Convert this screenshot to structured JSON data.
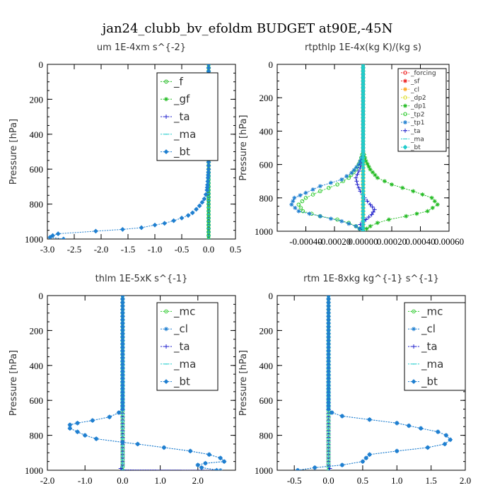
{
  "figure_title": "jan24_clubb_bv_efoldm  BUDGET at90E,-45N",
  "colors": {
    "green": "#22bb22",
    "bright_green": "#33cc33",
    "blue": "#1f7fd0",
    "navy": "#2222cc",
    "cyan": "#22cccc",
    "red": "#ee2222",
    "orange": "#ffaa22",
    "yellow": "#dddd22"
  },
  "chart_data": [
    {
      "type": "line",
      "title": "um  1E-4xm s^{-2}",
      "ylabel": "Pressure [hPa]",
      "xlim": [
        -3.0,
        0.5
      ],
      "ylim": [
        0,
        1000
      ],
      "y_inverted": true,
      "xticks": [
        -3.0,
        -2.5,
        -2.0,
        -1.5,
        -1.0,
        -0.5,
        0.0,
        0.5
      ],
      "xtick_labels": [
        "-3.0",
        "-2.5",
        "-2.0",
        "-1.5",
        "-1.0",
        "-0.5",
        "0.0",
        "0.5"
      ],
      "yticks": [
        0,
        200,
        400,
        600,
        800,
        1000
      ],
      "ytick_labels": [
        "0",
        "200",
        "400",
        "600",
        "800",
        "1000"
      ],
      "legend": "top-right",
      "series": [
        {
          "name": "_f",
          "color": "#22bb22",
          "marker": "circle",
          "x": [
            0.0,
            0.0
          ],
          "y": [
            0,
            1000
          ]
        },
        {
          "name": "_gf",
          "color": "#22bb22",
          "marker": "star",
          "x": [
            0.0,
            0.0
          ],
          "y": [
            0,
            1000
          ]
        },
        {
          "name": "_ta",
          "color": "#2222cc",
          "marker": "plus",
          "x": [
            0.0,
            0.0
          ],
          "y": [
            0,
            1000
          ]
        },
        {
          "name": "_ma",
          "color": "#22cccc",
          "marker": "dash",
          "x": [
            0.0,
            0.0
          ],
          "y": [
            0,
            1000
          ]
        },
        {
          "name": "_bt",
          "color": "#1f7fd0",
          "marker": "diamond",
          "x": [
            0.0,
            0.0,
            -0.01,
            -0.02,
            -0.03,
            -0.05,
            -0.08,
            -0.12,
            -0.17,
            -0.23,
            -0.3,
            -0.38,
            -0.5,
            -0.65,
            -0.82,
            -1.0,
            -1.25,
            -1.6,
            -2.1,
            -2.8,
            -2.9,
            -2.95,
            -2.7
          ],
          "y": [
            0,
            600,
            650,
            690,
            720,
            745,
            770,
            790,
            810,
            830,
            850,
            865,
            880,
            895,
            910,
            920,
            935,
            945,
            955,
            970,
            980,
            990,
            1000
          ]
        }
      ]
    },
    {
      "type": "line",
      "title": "rtpthlp  1E-4x(kg K)/(kg s)",
      "ylabel": "Pressure [hPa]",
      "xlim": [
        -0.0006,
        0.0006
      ],
      "ylim": [
        0,
        1000
      ],
      "y_inverted": true,
      "xticks": [
        -0.0004,
        -0.0002,
        0.0,
        0.0002,
        0.0004,
        0.0006
      ],
      "xtick_labels": [
        "-0.00040",
        "-0.00020",
        "0.00000",
        "0.00020",
        "0.00040",
        "0.00060"
      ],
      "yticks": [
        0,
        200,
        400,
        600,
        800,
        1000
      ],
      "ytick_labels": [
        "0",
        "200",
        "400",
        "600",
        "800",
        "1000"
      ],
      "legend": "top-right",
      "series": [
        {
          "name": "_forcing",
          "color": "#ee2222",
          "marker": "circle",
          "x": [
            0.0,
            0.0
          ],
          "y": [
            0,
            1000
          ]
        },
        {
          "name": "_sf",
          "color": "#ee2222",
          "marker": "star",
          "x": [
            0.0,
            0.0
          ],
          "y": [
            0,
            1000
          ]
        },
        {
          "name": "_cl",
          "color": "#ffaa22",
          "marker": "star",
          "x": [
            0.0,
            0.0
          ],
          "y": [
            0,
            1000
          ]
        },
        {
          "name": "_dp2",
          "color": "#dddd22",
          "marker": "circle",
          "x": [
            0.0,
            0.0
          ],
          "y": [
            0,
            1000
          ]
        },
        {
          "name": "_dp1",
          "color": "#22bb22",
          "marker": "star",
          "x": [
            0.0,
            0.0,
            2e-05,
            5e-05,
            0.0001,
            0.0002,
            0.00035,
            0.00048,
            0.00052,
            0.00045,
            0.0003,
            0.00018,
            0.0001,
            5e-05,
            0.0
          ],
          "y": [
            0,
            520,
            580,
            630,
            680,
            720,
            760,
            800,
            840,
            880,
            910,
            930,
            950,
            970,
            1000
          ]
        },
        {
          "name": "_tp2",
          "color": "#33cc33",
          "marker": "circle",
          "x": [
            0.0,
            0.0,
            -2e-05,
            -5e-05,
            -0.0001,
            -0.00018,
            -0.0003,
            -0.0004,
            -0.00045,
            -0.00042,
            -0.0003,
            -0.00018,
            -0.0001,
            -5e-05,
            0.0
          ],
          "y": [
            0,
            520,
            580,
            630,
            680,
            720,
            760,
            800,
            840,
            880,
            910,
            930,
            950,
            970,
            1000
          ]
        },
        {
          "name": "_tp1",
          "color": "#1f7fd0",
          "marker": "star",
          "x": [
            0.0,
            0.0,
            -3e-05,
            -8e-05,
            -0.00015,
            -0.0003,
            -0.0004,
            -0.00048,
            -0.0005,
            -0.00045,
            -0.0003,
            -0.00015,
            -5e-05,
            0.0
          ],
          "y": [
            0,
            540,
            600,
            650,
            690,
            730,
            770,
            800,
            840,
            880,
            910,
            940,
            970,
            1000
          ]
        },
        {
          "name": "_ta",
          "color": "#2222cc",
          "marker": "plus",
          "x": [
            0.0,
            0.0,
            -2e-05,
            -5e-05,
            -4e-05,
            -2e-05,
            1e-05,
            5e-05,
            8e-05,
            6e-05,
            2e-05,
            -2e-05,
            0.0
          ],
          "y": [
            0,
            560,
            620,
            680,
            720,
            760,
            800,
            840,
            870,
            900,
            930,
            960,
            1000
          ]
        },
        {
          "name": "_ma",
          "color": "#22cccc",
          "marker": "dash",
          "x": [
            0.0,
            0.0
          ],
          "y": [
            0,
            1000
          ]
        },
        {
          "name": "_bt",
          "color": "#22cccc",
          "marker": "diamond",
          "x": [
            0.0,
            0.0
          ],
          "y": [
            0,
            1000
          ]
        }
      ]
    },
    {
      "type": "line",
      "title": "thlm  1E-5xK s^{-1}",
      "ylabel": "Pressure [hPa]",
      "xlim": [
        -2.0,
        3.0
      ],
      "ylim": [
        0,
        1000
      ],
      "y_inverted": true,
      "xticks": [
        -2.0,
        -1.0,
        0.0,
        1.0,
        2.0
      ],
      "xtick_labels": [
        "-2.0",
        "-1.0",
        "0.0",
        "1.0",
        "2.0"
      ],
      "yticks": [
        0,
        200,
        400,
        600,
        800,
        1000
      ],
      "ytick_labels": [
        "0",
        "200",
        "400",
        "600",
        "800",
        "1000"
      ],
      "legend": "top-right",
      "series": [
        {
          "name": "_mc",
          "color": "#33cc33",
          "marker": "circle",
          "x": [
            0.0,
            0.0
          ],
          "y": [
            0,
            1000
          ]
        },
        {
          "name": "_cl",
          "color": "#1f7fd0",
          "marker": "star",
          "x": [
            0.0,
            0.0,
            -0.1,
            -0.35,
            -0.8,
            -1.2,
            -1.4,
            -1.4,
            -1.0,
            -0.7,
            0.0,
            0.4,
            1.1,
            1.8,
            2.3,
            2.6,
            2.7,
            2.2,
            2.0,
            2.1,
            2.6
          ],
          "y": [
            0,
            650,
            670,
            695,
            715,
            730,
            740,
            760,
            800,
            820,
            840,
            850,
            870,
            890,
            910,
            930,
            950,
            960,
            970,
            985,
            1000
          ]
        },
        {
          "name": "_ta",
          "color": "#2222cc",
          "marker": "plus",
          "x": [
            0.0,
            0.0,
            -0.05,
            0.0,
            2.5
          ],
          "y": [
            0,
            970,
            990,
            998,
            1000
          ]
        },
        {
          "name": "_ma",
          "color": "#22cccc",
          "marker": "dash",
          "x": [
            0.0,
            0.0
          ],
          "y": [
            0,
            1000
          ]
        },
        {
          "name": "_bt",
          "color": "#1f7fd0",
          "marker": "diamond",
          "x": [
            0.0,
            0.0,
            -0.1,
            -0.35,
            -0.8,
            -1.2,
            -1.4,
            -1.4,
            -1.0,
            -0.7,
            0.0,
            0.4,
            1.1,
            1.8,
            2.3,
            2.6,
            2.7,
            2.2,
            2.0,
            2.1,
            2.5
          ],
          "y": [
            0,
            650,
            670,
            695,
            715,
            730,
            740,
            760,
            800,
            820,
            840,
            850,
            870,
            890,
            910,
            930,
            950,
            960,
            970,
            985,
            1000
          ]
        }
      ]
    },
    {
      "type": "line",
      "title": "rtm  1E-8xkg kg^{-1} s^{-1}",
      "ylabel": "Pressure [hPa]",
      "xlim": [
        -0.75,
        2.0
      ],
      "ylim": [
        0,
        1000
      ],
      "y_inverted": true,
      "xticks": [
        -0.5,
        0.0,
        0.5,
        1.0,
        1.5,
        2.0
      ],
      "xtick_labels": [
        "-0.5",
        "0.0",
        "0.5",
        "1.0",
        "1.5",
        "2.0"
      ],
      "yticks": [
        0,
        200,
        400,
        600,
        800,
        1000
      ],
      "ytick_labels": [
        "0",
        "200",
        "400",
        "600",
        "800",
        "1000"
      ],
      "legend": "top-right",
      "series": [
        {
          "name": "_mc",
          "color": "#33cc33",
          "marker": "circle",
          "x": [
            0.0,
            0.0
          ],
          "y": [
            0,
            1000
          ]
        },
        {
          "name": "_cl",
          "color": "#1f7fd0",
          "marker": "star",
          "x": [
            0.0,
            0.0,
            0.05,
            0.2,
            0.6,
            1.0,
            1.35,
            1.6,
            1.72,
            1.78,
            1.7,
            1.45,
            1.0,
            0.6,
            0.55,
            0.5,
            0.2,
            -0.2,
            -0.45
          ],
          "y": [
            0,
            650,
            670,
            690,
            710,
            730,
            760,
            780,
            800,
            825,
            850,
            870,
            890,
            910,
            930,
            950,
            970,
            985,
            1000
          ]
        },
        {
          "name": "_ta",
          "color": "#2222cc",
          "marker": "plus",
          "x": [
            0.0,
            0.0,
            0.02,
            0.0
          ],
          "y": [
            0,
            970,
            990,
            1000
          ]
        },
        {
          "name": "_ma",
          "color": "#22cccc",
          "marker": "dash",
          "x": [
            0.0,
            0.0
          ],
          "y": [
            0,
            1000
          ]
        },
        {
          "name": "_bt",
          "color": "#1f7fd0",
          "marker": "diamond",
          "x": [
            0.0,
            0.0,
            0.05,
            0.2,
            0.6,
            1.0,
            1.35,
            1.6,
            1.72,
            1.78,
            1.7,
            1.45,
            1.0,
            0.6,
            0.55,
            0.5,
            0.2,
            -0.2,
            -0.45
          ],
          "y": [
            0,
            650,
            670,
            690,
            710,
            730,
            760,
            780,
            800,
            825,
            850,
            870,
            890,
            910,
            930,
            950,
            970,
            985,
            1000
          ]
        }
      ]
    }
  ]
}
